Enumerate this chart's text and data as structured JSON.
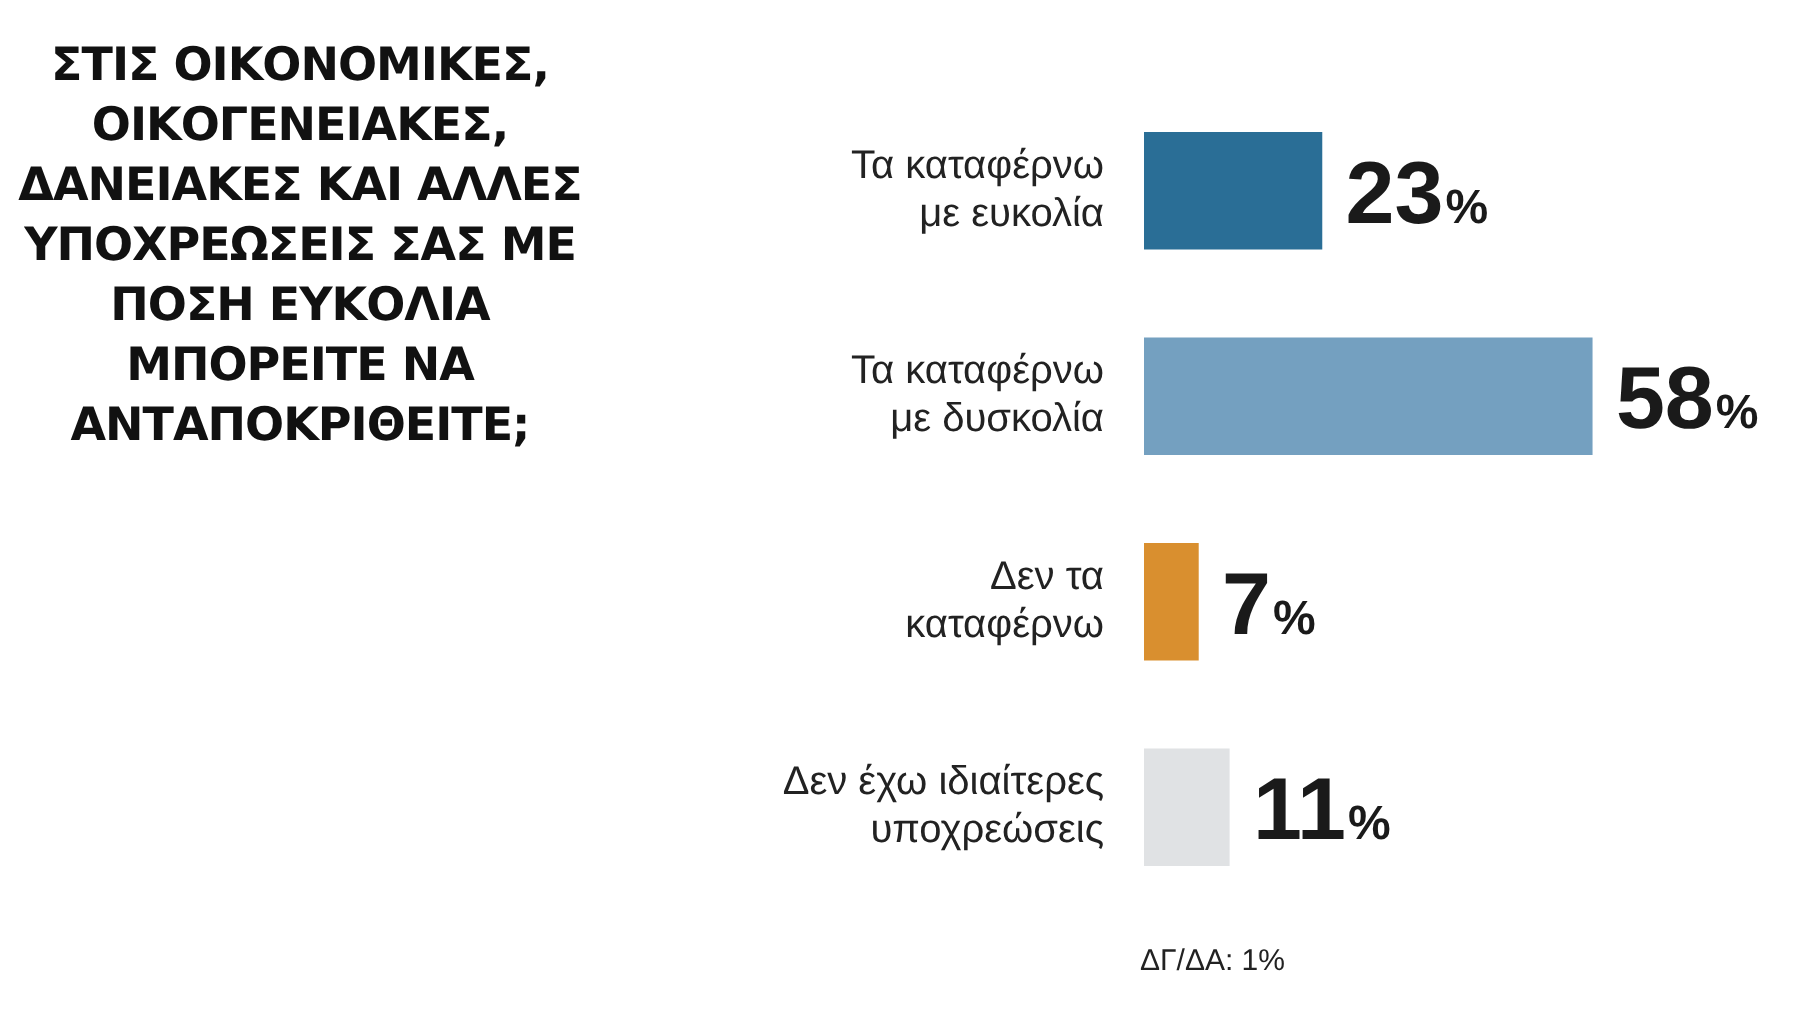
{
  "chart_data": {
    "type": "bar",
    "orientation": "horizontal",
    "title": "ΣΤΙΣ ΟΙΚΟΝΟΜΙΚΕΣ, ΟΙΚΟΓΕΝΕΙΑΚΕΣ, ΔΑΝΕΙΑΚΕΣ ΚΑΙ ΑΛΛΕΣ ΥΠΟΧΡΕΩΣΕΙΣ ΣΑΣ ΜΕ ΠΟΣΗ ΕΥΚΟΛΙΑ ΜΠΟΡΕΙΤΕ ΝΑ ΑΝΤΑΠΟΚΡΙΘΕΙΤΕ;",
    "categories": [
      "Τα καταφέρνω με ευκολία",
      "Τα καταφέρνω με δυσκολία",
      "Δεν τα καταφέρνω",
      "Δεν έχω ιδιαίτερες υποχρεώσεις"
    ],
    "values": [
      23,
      58,
      7,
      11
    ],
    "colors": [
      "#2a6e96",
      "#74a0c0",
      "#d98f2f",
      "#e0e2e4"
    ],
    "value_labels": [
      "23%",
      "58%",
      "7%",
      "11%"
    ],
    "annotations": [
      "ΔΓ/ΔΑ: 1%"
    ],
    "grid": false,
    "legend": false
  }
}
